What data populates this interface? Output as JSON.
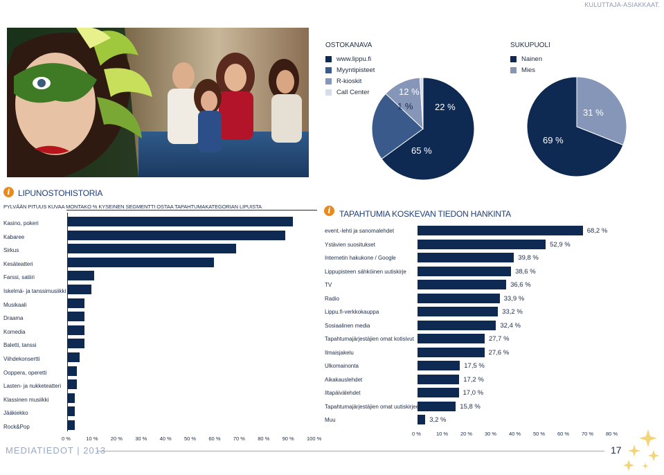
{
  "header": {
    "label": "KULUTTAJA-ASIAKKAAT."
  },
  "sales_channels": {
    "title": "OSTOKANAVA",
    "legend": [
      {
        "label": "www.lippu.fi",
        "color": "#0f2a52"
      },
      {
        "label": "Myyntipisteet",
        "color": "#3a5a8c"
      },
      {
        "label": "R-kioskit",
        "color": "#8596b8"
      },
      {
        "label": "Call Center",
        "color": "#d6dceb"
      }
    ],
    "slice_labels": [
      "65 %",
      "22 %",
      "12 %",
      "1 %"
    ],
    "values": [
      65,
      22,
      12,
      1
    ]
  },
  "gender": {
    "title": "SUKUPUOLI",
    "legend": [
      {
        "label": "Nainen",
        "color": "#0f2a52"
      },
      {
        "label": "Mies",
        "color": "#8596b8"
      }
    ],
    "slice_labels": [
      "69 %",
      "31 %"
    ],
    "values": [
      69,
      31
    ]
  },
  "ticket_history": {
    "title": "LIPUNOSTOHISTORIA",
    "subtitle": "PYLVÄÄN PITUUS KUVAA MONTAKO % KYSEINEN SEGMENTTI OSTAA TAPAHTUMAKATEGORIAN LIPUISTA",
    "icon": "info-icon"
  },
  "info_sources": {
    "title": "TAPAHTUMIA KOSKEVAN TIEDON HANKINTA",
    "icon": "info-icon"
  },
  "chart_data": [
    {
      "type": "pie",
      "title": "OSTOKANAVA",
      "categories": [
        "www.lippu.fi",
        "Myyntipisteet",
        "R-kioskit",
        "Call Center"
      ],
      "values": [
        65,
        22,
        12,
        1
      ]
    },
    {
      "type": "pie",
      "title": "SUKUPUOLI",
      "categories": [
        "Nainen",
        "Mies"
      ],
      "values": [
        69,
        31
      ]
    },
    {
      "type": "bar",
      "orientation": "horizontal",
      "categories": [
        "Kasino, pokeri",
        "Kabaree",
        "Sirkus",
        "Kesäteatteri",
        "Farssi, satiiri",
        "Iskelmä- ja tanssimusiikki",
        "Musikaali",
        "Draama",
        "Komedia",
        "Baletti, tanssi",
        "Viihdekonsertti",
        "Ooppera, operetti",
        "Lasten- ja nukketeatteri",
        "Klassinen musiikki",
        "Jääkiekko",
        "Rock&Pop"
      ],
      "values": [
        92,
        89,
        69,
        60,
        11,
        10,
        7,
        7,
        7,
        7,
        5,
        4,
        4,
        3,
        3,
        3
      ],
      "ticks": [
        "0 %",
        "10 %",
        "20 %",
        "30 %",
        "40 %",
        "50 %",
        "60 %",
        "70 %",
        "80 %",
        "90 %",
        "100 %"
      ],
      "xlim": [
        0,
        100
      ],
      "grid": false
    },
    {
      "type": "bar",
      "orientation": "horizontal",
      "title": "TAPAHTUMIA KOSKEVAN TIEDON HANKINTA",
      "categories": [
        "event.-lehti ja sanomalehdet",
        "Ystävien suositukset",
        "Internetin hakukone / Google",
        "Lippupisteen sähköinen uutiskirje",
        "TV",
        "Radio",
        "Lippu.fi-verkkokauppa",
        "Sosiaalinen media",
        "Tapahtumajärjestäjien omat kotisivut",
        "Ilmaisjakelu",
        "Ulkomainonta",
        "Aikakauslehdet",
        "Iltapäivälehdet",
        "Tapahtumajärjestäjien omat uutiskirjeet",
        "Muu"
      ],
      "values": [
        68.2,
        52.9,
        39.8,
        38.6,
        36.6,
        33.9,
        33.2,
        32.4,
        27.7,
        27.6,
        17.5,
        17.2,
        17.0,
        15.8,
        3.2
      ],
      "value_labels": [
        "68,2 %",
        "52,9 %",
        "39,8 %",
        "38,6 %",
        "36,6 %",
        "33,9 %",
        "33,2 %",
        "32,4 %",
        "27,7 %",
        "27,6 %",
        "17,5 %",
        "17,2 %",
        "17,0 %",
        "15,8  %",
        "3,2 %"
      ],
      "ticks": [
        "0 %",
        "10 %",
        "20 %",
        "30 %",
        "40 %",
        "50 %",
        "60 %",
        "70 %",
        "80 %"
      ],
      "xlim": [
        0,
        80
      ],
      "grid": false
    }
  ],
  "footer": {
    "label": "MEDIATIEDOT | 2013",
    "page": "17"
  },
  "colors": {
    "bar": "#0f2a52",
    "accent": "#e88a1c",
    "title": "#1c3e78",
    "muted": "#9aa8c4",
    "star": "#f2d479"
  }
}
